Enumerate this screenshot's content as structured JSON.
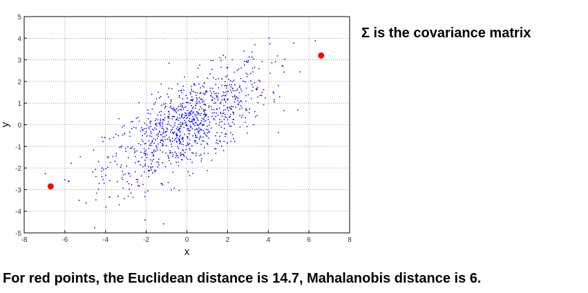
{
  "side_note": "Σ is the covariance matrix",
  "caption": "For red points, the Euclidean distance is 14.7, Mahalanobis distance is 6.",
  "chart_data": {
    "type": "scatter",
    "title": "",
    "xlabel": "x",
    "ylabel": "y",
    "xlim": [
      -8,
      8
    ],
    "ylim": [
      -5,
      5
    ],
    "xticks": [
      "-8",
      "-6",
      "-4",
      "-2",
      "0",
      "2",
      "4",
      "6",
      "8"
    ],
    "yticks": [
      "-5",
      "-4",
      "-3",
      "-2",
      "-1",
      "0",
      "1",
      "2",
      "3",
      "4",
      "5"
    ],
    "grid": true,
    "sample_cloud": {
      "count": 1000,
      "mean": [
        0,
        0
      ],
      "sd_x": 2.0,
      "sd_y": 1.4,
      "correlation": 0.7,
      "color": "#0000ff",
      "marker": "small dot"
    },
    "highlighted_points": {
      "x": [
        -6.7,
        6.6
      ],
      "y": [
        -2.85,
        3.2
      ],
      "color": "#ff0000",
      "marker": "large filled circle"
    }
  }
}
